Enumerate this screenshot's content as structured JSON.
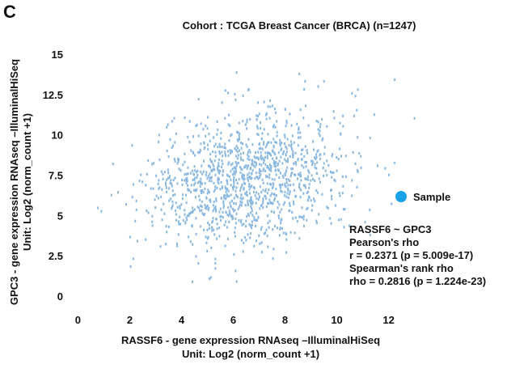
{
  "panel_letter": "C",
  "chart_data": {
    "type": "scatter",
    "title": "Cohort : TCGA Breast Cancer (BRCA) (n=1247)",
    "ylabel_line1": "GPC3 - gene expression RNAseq –IlluminalHiSeq",
    "ylabel_line2": "Unit:  Log2 (norm_count +1)",
    "xlabel_line1": "RASSF6 - gene expression RNAseq –IlluminalHiSeq",
    "xlabel_line2": "Unit:  Log2 (norm_count +1)",
    "xlim": [
      -0.2,
      13.2
    ],
    "ylim": [
      -0.2,
      16.0
    ],
    "x_ticks": [
      0,
      2,
      4,
      6,
      8,
      10,
      12
    ],
    "x_tick_labels": [
      "0",
      "2",
      "4",
      "6",
      "8",
      "10",
      "12"
    ],
    "y_ticks": [
      0,
      2.5,
      5,
      7.5,
      10,
      12.5,
      15
    ],
    "y_tick_labels": [
      "0",
      "2.5",
      "5",
      "7.5",
      "10",
      "12.5",
      "15"
    ],
    "grid": false,
    "legend": {
      "label": "Sample",
      "placement": "right",
      "color": "#1aa3e8"
    },
    "point_color": "#8ab8e0",
    "n_points": 1247,
    "distribution": {
      "x_mean": 6.6,
      "x_sd": 1.9,
      "y_mean": 7.3,
      "y_sd": 2.1,
      "pearson_r": 0.2371
    },
    "stats": {
      "title": "RASSF6 ~ GPC3",
      "pearson_label": "Pearson's rho",
      "pearson_value": "r = 0.2371 (p = 5.009e-17)",
      "spearman_label": "Spearman's rank rho",
      "spearman_value": "rho = 0.2816 (p = 1.224e-23)"
    }
  }
}
